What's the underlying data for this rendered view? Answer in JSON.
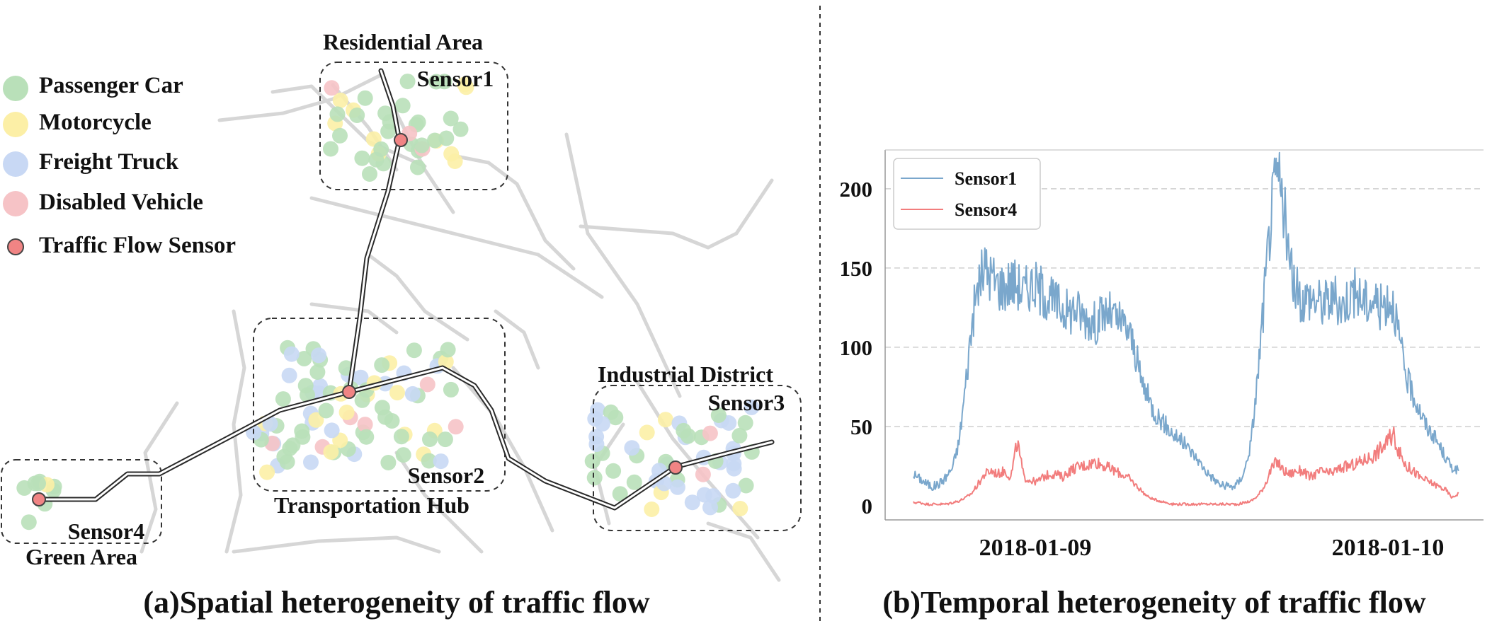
{
  "left_panel": {
    "caption": "(a)Spatial heterogeneity of traffic flow",
    "legend": [
      {
        "label": "Passenger Car",
        "color": "#b9e0b9"
      },
      {
        "label": "Motorcycle",
        "color": "#fcefa6"
      },
      {
        "label": "Freight Truck",
        "color": "#c8d8f4"
      },
      {
        "label": "Disabled Vehicle",
        "color": "#f6c3c6"
      },
      {
        "label": "Traffic Flow Sensor",
        "color": "#f08484"
      }
    ],
    "areas": {
      "residential": "Residential Area",
      "hub": "Transportation Hub",
      "industrial": "Industrial District",
      "green": "Green Area"
    },
    "sensors": {
      "s1": "Sensor1",
      "s2": "Sensor2",
      "s3": "Sensor3",
      "s4": "Sensor4"
    }
  },
  "chart_data": {
    "type": "line",
    "title": "(b)Temporal heterogeneity of traffic flow",
    "x_tick_labels": [
      "2018-01-09",
      "2018-01-10"
    ],
    "ylim": [
      0,
      220
    ],
    "y_ticks": [
      0,
      50,
      100,
      150,
      200
    ],
    "grid": "horizontal dashed",
    "legend_position": "top-left",
    "series": [
      {
        "name": "Sensor1",
        "color": "#7aa7cc",
        "values": [
          20,
          17,
          14,
          12,
          14,
          18,
          24,
          40,
          75,
          115,
          140,
          150,
          145,
          140,
          138,
          142,
          140,
          135,
          140,
          138,
          135,
          130,
          128,
          125,
          122,
          125,
          120,
          118,
          115,
          120,
          122,
          118,
          115,
          112,
          100,
          80,
          70,
          60,
          55,
          50,
          45,
          42,
          38,
          33,
          28,
          22,
          18,
          14,
          12,
          12,
          14,
          22,
          40,
          80,
          130,
          180,
          210,
          190,
          150,
          135,
          130,
          132,
          130,
          128,
          130,
          130,
          125,
          132,
          135,
          130,
          128,
          130,
          125,
          130,
          128,
          100,
          80,
          70,
          60,
          50,
          45,
          38,
          30,
          24,
          22
        ]
      },
      {
        "name": "Sensor4",
        "color": "#f27d7d",
        "values": [
          2,
          2,
          1,
          1,
          1,
          1,
          2,
          3,
          5,
          8,
          14,
          20,
          22,
          20,
          22,
          18,
          40,
          18,
          16,
          15,
          18,
          20,
          20,
          18,
          22,
          24,
          25,
          26,
          28,
          26,
          24,
          22,
          20,
          18,
          14,
          10,
          6,
          4,
          3,
          2,
          1,
          1,
          1,
          1,
          1,
          1,
          1,
          1,
          1,
          1,
          1,
          2,
          3,
          6,
          12,
          22,
          28,
          22,
          20,
          22,
          22,
          18,
          20,
          22,
          20,
          22,
          24,
          25,
          26,
          28,
          30,
          32,
          36,
          40,
          45,
          32,
          25,
          22,
          18,
          16,
          14,
          12,
          10,
          5,
          8
        ]
      }
    ]
  }
}
